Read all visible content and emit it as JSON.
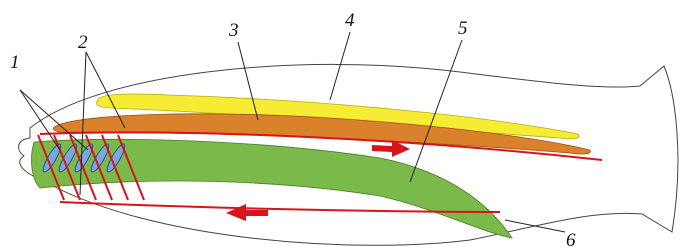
{
  "labels": [
    "1",
    "2",
    "3",
    "4",
    "5",
    "6"
  ]
}
